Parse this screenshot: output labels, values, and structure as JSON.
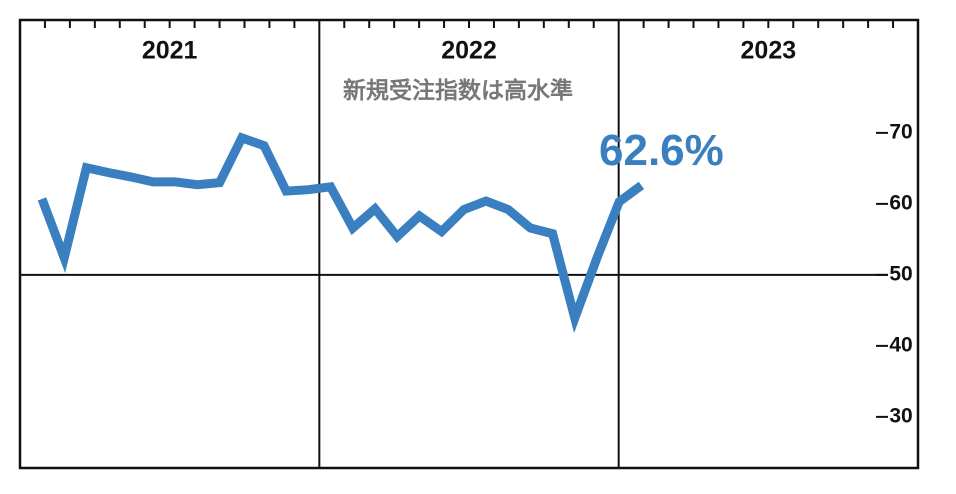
{
  "chart_data": {
    "type": "line",
    "annotation": "新規受注指数は高水準",
    "years": [
      "2021",
      "2022",
      "2023"
    ],
    "series": [
      {
        "name": null,
        "color": "#3a7fbf",
        "values": [
          60.7,
          52.4,
          65.1,
          64.4,
          63.8,
          63.1,
          63.1,
          62.7,
          63.0,
          69.3,
          68.2,
          61.8,
          62.0,
          62.4,
          56.6,
          59.3,
          55.4,
          58.3,
          56.1,
          59.2,
          60.4,
          59.2,
          56.6,
          55.8,
          43.9,
          52.4,
          60.3,
          62.6
        ],
        "value_labels": [
          null,
          null,
          null,
          null,
          null,
          null,
          null,
          null,
          null,
          null,
          null,
          null,
          null,
          null,
          null,
          null,
          null,
          null,
          null,
          null,
          null,
          null,
          null,
          null,
          null,
          null,
          null,
          "62.6%"
        ]
      }
    ],
    "ylim": [
      22.8,
      85.9
    ],
    "yticks": [
      30,
      40,
      50,
      60,
      70
    ],
    "reference_line": 50
  }
}
